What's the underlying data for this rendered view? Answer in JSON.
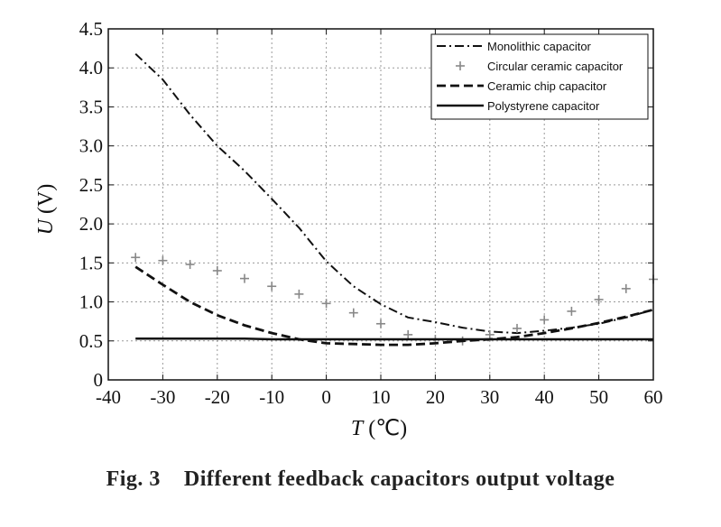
{
  "chart_data": {
    "type": "line",
    "title": "",
    "xlabel_var": "T",
    "xlabel_unit": " (℃)",
    "ylabel_var": "U",
    "ylabel_unit": " (V)",
    "xlim": [
      -40,
      60
    ],
    "ylim": [
      0,
      4.5
    ],
    "xticks": [
      -40,
      -30,
      -20,
      -10,
      0,
      10,
      20,
      30,
      40,
      50,
      60
    ],
    "xtick_labels": [
      "-40",
      "-30",
      "-20",
      "-10",
      "0",
      "10",
      "20",
      "30",
      "40",
      "50",
      "60"
    ],
    "yticks": [
      0,
      0.5,
      1.0,
      1.5,
      2.0,
      2.5,
      3.0,
      3.5,
      4.0,
      4.5
    ],
    "ytick_labels": [
      "0",
      "0.5",
      "1.0",
      "1.5",
      "2.0",
      "2.5",
      "3.0",
      "3.5",
      "4.0",
      "4.5"
    ],
    "grid": true,
    "legend_position": "top-right",
    "series": [
      {
        "name": "Monolithic capacitor",
        "style": "dashdot",
        "x": [
          -35,
          -30,
          -25,
          -20,
          -15,
          -10,
          -5,
          0,
          5,
          10,
          15,
          20,
          25,
          30,
          35,
          40,
          45,
          50,
          55,
          60
        ],
        "y": [
          4.18,
          3.85,
          3.4,
          3.0,
          2.68,
          2.32,
          1.95,
          1.52,
          1.2,
          0.97,
          0.8,
          0.74,
          0.67,
          0.62,
          0.6,
          0.63,
          0.67,
          0.72,
          0.8,
          0.9
        ]
      },
      {
        "name": "Circular ceramic capacitor",
        "style": "plus-markers",
        "x": [
          -35,
          -30,
          -25,
          -20,
          -15,
          -10,
          -5,
          0,
          5,
          10,
          15,
          20,
          25,
          30,
          35,
          40,
          45,
          50,
          55,
          60
        ],
        "y": [
          1.57,
          1.53,
          1.48,
          1.4,
          1.3,
          1.2,
          1.1,
          0.98,
          0.86,
          0.72,
          0.58,
          0.52,
          0.5,
          0.58,
          0.66,
          0.77,
          0.88,
          1.03,
          1.17,
          1.29
        ]
      },
      {
        "name": "Ceramic chip capacitor",
        "style": "dashed",
        "x": [
          -35,
          -30,
          -25,
          -20,
          -15,
          -10,
          -5,
          0,
          5,
          10,
          15,
          20,
          25,
          30,
          35,
          40,
          45,
          50,
          55,
          60
        ],
        "y": [
          1.45,
          1.22,
          1.0,
          0.83,
          0.7,
          0.6,
          0.52,
          0.47,
          0.46,
          0.45,
          0.45,
          0.47,
          0.5,
          0.52,
          0.55,
          0.6,
          0.66,
          0.73,
          0.81,
          0.9
        ]
      },
      {
        "name": "Polystyrene capacitor",
        "style": "solid",
        "x": [
          -35,
          -30,
          -25,
          -20,
          -15,
          -10,
          -5,
          0,
          5,
          10,
          15,
          20,
          25,
          30,
          35,
          40,
          45,
          50,
          55,
          60
        ],
        "y": [
          0.53,
          0.53,
          0.53,
          0.53,
          0.53,
          0.52,
          0.52,
          0.52,
          0.52,
          0.52,
          0.52,
          0.52,
          0.52,
          0.52,
          0.52,
          0.52,
          0.52,
          0.52,
          0.52,
          0.52
        ]
      }
    ]
  },
  "caption": "Fig. 3    Different feedback capacitors output voltage",
  "colors": {
    "ink": "#111111",
    "marker": "#888888",
    "grid": "#9a9a9a"
  }
}
